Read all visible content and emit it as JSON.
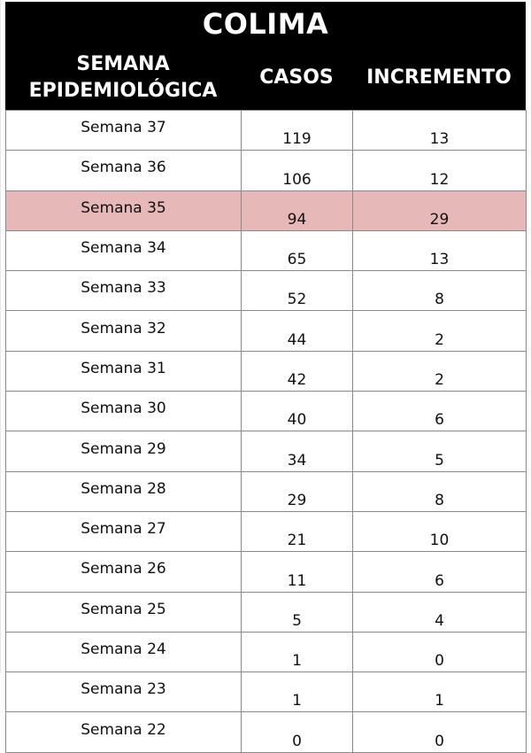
{
  "chart_data": {
    "type": "table",
    "title": "COLIMA",
    "columns": [
      "SEMANA EPIDEMIOLÓGICA",
      "CASOS",
      "INCREMENTO"
    ],
    "column_header_lines": {
      "semana": [
        "SEMANA",
        "EPIDEMIOLÓGICA"
      ],
      "casos": "CASOS",
      "incremento": "INCREMENTO"
    },
    "highlight_color": "#e6b8b8",
    "header_background": "#000000",
    "rows": [
      {
        "semana": "Semana 37",
        "casos": "119",
        "incremento": "13",
        "highlight": false
      },
      {
        "semana": "Semana 36",
        "casos": "106",
        "incremento": "12",
        "highlight": false
      },
      {
        "semana": "Semana 35",
        "casos": "94",
        "incremento": "29",
        "highlight": true
      },
      {
        "semana": "Semana 34",
        "casos": "65",
        "incremento": "13",
        "highlight": false
      },
      {
        "semana": "Semana 33",
        "casos": "52",
        "incremento": "8",
        "highlight": false
      },
      {
        "semana": "Semana 32",
        "casos": "44",
        "incremento": "2",
        "highlight": false
      },
      {
        "semana": "Semana 31",
        "casos": "42",
        "incremento": "2",
        "highlight": false
      },
      {
        "semana": "Semana 30",
        "casos": "40",
        "incremento": "6",
        "highlight": false
      },
      {
        "semana": "Semana 29",
        "casos": "34",
        "incremento": "5",
        "highlight": false
      },
      {
        "semana": "Semana 28",
        "casos": "29",
        "incremento": "8",
        "highlight": false
      },
      {
        "semana": "Semana 27",
        "casos": "21",
        "incremento": "10",
        "highlight": false
      },
      {
        "semana": "Semana 26",
        "casos": "11",
        "incremento": "6",
        "highlight": false
      },
      {
        "semana": "Semana 25",
        "casos": "5",
        "incremento": "4",
        "highlight": false
      },
      {
        "semana": "Semana 24",
        "casos": "1",
        "incremento": "0",
        "highlight": false
      },
      {
        "semana": "Semana 23",
        "casos": "1",
        "incremento": "1",
        "highlight": false
      },
      {
        "semana": "Semana 22",
        "casos": "0",
        "incremento": "0",
        "highlight": false
      }
    ]
  }
}
